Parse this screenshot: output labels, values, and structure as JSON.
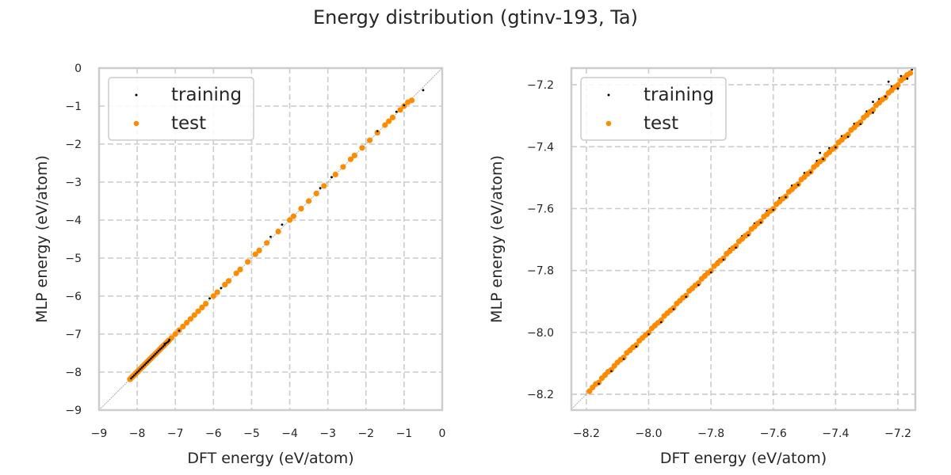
{
  "title": "Energy distribution (gtinv-193, Ta)",
  "chart_data": {
    "type": "scatter",
    "title": "Energy distribution (gtinv-193, Ta)",
    "colors": {
      "training": "#000000",
      "test": "#ff8c00",
      "diagonal": "#999999",
      "grid": "#cccccc",
      "spine": "#cccccc"
    },
    "legend_placement": "top-left",
    "grid": true,
    "subplots": [
      {
        "xlabel": "DFT energy (eV/atom)",
        "ylabel": "MLP energy (eV/atom)",
        "xlim": [
          -9,
          0
        ],
        "ylim": [
          -9,
          0
        ],
        "xticks": [
          -9,
          -8,
          -7,
          -6,
          -5,
          -4,
          -3,
          -2,
          -1,
          0
        ],
        "yticks": [
          -9,
          -8,
          -7,
          -6,
          -5,
          -4,
          -3,
          -2,
          -1,
          0
        ],
        "tick_labels_x": [
          "−9",
          "−8",
          "−7",
          "−6",
          "−5",
          "−4",
          "−3",
          "−2",
          "−1",
          "0"
        ],
        "tick_labels_y": [
          "−9",
          "−8",
          "−7",
          "−6",
          "−5",
          "−4",
          "−3",
          "−2",
          "−1",
          "0"
        ]
      },
      {
        "xlabel": "DFT energy (eV/atom)",
        "ylabel": "MLP energy (eV/atom)",
        "xlim": [
          -8.248,
          -7.144
        ],
        "ylim": [
          -8.251,
          -7.146
        ],
        "xticks": [
          -8.2,
          -8.0,
          -7.8,
          -7.6,
          -7.4,
          -7.2
        ],
        "yticks": [
          -8.2,
          -8.0,
          -7.8,
          -7.6,
          -7.4,
          -7.2
        ],
        "tick_labels_x": [
          "−8.2",
          "−8.0",
          "−7.8",
          "−7.6",
          "−7.4",
          "−7.2"
        ],
        "tick_labels_y": [
          "−8.2",
          "−8.0",
          "−7.8",
          "−7.6",
          "−7.4",
          "−7.2"
        ]
      }
    ],
    "series": [
      {
        "name": "training",
        "points": [
          [
            -8.18,
            -8.175
          ],
          [
            -8.16,
            -8.166
          ],
          [
            -8.14,
            -8.132
          ],
          [
            -8.12,
            -8.125
          ],
          [
            -8.1,
            -8.094
          ],
          [
            -8.08,
            -8.086
          ],
          [
            -8.06,
            -8.052
          ],
          [
            -8.04,
            -8.046
          ],
          [
            -8.02,
            -8.014
          ],
          [
            -8.0,
            -8.006
          ],
          [
            -7.98,
            -7.972
          ],
          [
            -7.96,
            -7.967
          ],
          [
            -7.94,
            -7.934
          ],
          [
            -7.92,
            -7.925
          ],
          [
            -7.9,
            -7.893
          ],
          [
            -7.88,
            -7.885
          ],
          [
            -7.86,
            -7.852
          ],
          [
            -7.84,
            -7.847
          ],
          [
            -7.82,
            -7.812
          ],
          [
            -7.8,
            -7.806
          ],
          [
            -7.78,
            -7.771
          ],
          [
            -7.76,
            -7.765
          ],
          [
            -7.74,
            -7.73
          ],
          [
            -7.72,
            -7.726
          ],
          [
            -7.7,
            -7.689
          ],
          [
            -7.68,
            -7.686
          ],
          [
            -7.66,
            -7.648
          ],
          [
            -7.64,
            -7.645
          ],
          [
            -7.62,
            -7.607
          ],
          [
            -7.6,
            -7.604
          ],
          [
            -7.58,
            -7.566
          ],
          [
            -7.56,
            -7.563
          ],
          [
            -7.54,
            -7.526
          ],
          [
            -7.52,
            -7.523
          ],
          [
            -7.5,
            -7.485
          ],
          [
            -7.48,
            -7.483
          ],
          [
            -7.46,
            -7.446
          ],
          [
            -7.44,
            -7.44
          ],
          [
            -7.42,
            -7.405
          ],
          [
            -7.4,
            -7.402
          ],
          [
            -7.38,
            -7.366
          ],
          [
            -7.36,
            -7.368
          ],
          [
            -7.34,
            -7.326
          ],
          [
            -7.32,
            -7.327
          ],
          [
            -7.3,
            -7.286
          ],
          [
            -7.28,
            -7.29
          ],
          [
            -7.26,
            -7.246
          ],
          [
            -7.24,
            -7.238
          ],
          [
            -7.22,
            -7.205
          ],
          [
            -7.2,
            -7.212
          ],
          [
            -7.19,
            -7.172
          ],
          [
            -7.17,
            -7.18
          ],
          [
            -7.16,
            -7.163
          ],
          [
            -7.155,
            -7.15
          ],
          [
            -7.23,
            -7.19
          ],
          [
            -7.28,
            -7.255
          ],
          [
            -7.45,
            -7.42
          ],
          [
            -6.9,
            -6.91
          ],
          [
            -6.1,
            -6.06
          ],
          [
            -5.8,
            -5.79
          ],
          [
            -4.5,
            -4.44
          ],
          [
            -4.2,
            -4.12
          ],
          [
            -3.2,
            -3.16
          ],
          [
            -2.9,
            -2.87
          ],
          [
            -2.1,
            -2.06
          ],
          [
            -1.7,
            -1.66
          ],
          [
            -1.2,
            -1.15
          ],
          [
            -1.0,
            -0.98
          ],
          [
            -0.85,
            -0.88
          ],
          [
            -0.5,
            -0.58
          ]
        ]
      },
      {
        "name": "test",
        "points": [
          [
            -8.19,
            -8.19
          ],
          [
            -8.18,
            -8.178
          ],
          [
            -8.17,
            -8.167
          ],
          [
            -8.16,
            -8.162
          ],
          [
            -8.15,
            -8.148
          ],
          [
            -8.14,
            -8.138
          ],
          [
            -8.13,
            -8.127
          ],
          [
            -8.12,
            -8.121
          ],
          [
            -8.11,
            -8.108
          ],
          [
            -8.1,
            -8.097
          ],
          [
            -8.09,
            -8.088
          ],
          [
            -8.08,
            -8.081
          ],
          [
            -8.07,
            -8.066
          ],
          [
            -8.06,
            -8.058
          ],
          [
            -8.05,
            -8.048
          ],
          [
            -8.04,
            -8.041
          ],
          [
            -8.03,
            -8.027
          ],
          [
            -8.02,
            -8.018
          ],
          [
            -8.01,
            -8.009
          ],
          [
            -8.0,
            -8.001
          ],
          [
            -7.99,
            -7.987
          ],
          [
            -7.98,
            -7.978
          ],
          [
            -7.97,
            -7.969
          ],
          [
            -7.96,
            -7.961
          ],
          [
            -7.95,
            -7.947
          ],
          [
            -7.94,
            -7.938
          ],
          [
            -7.93,
            -7.929
          ],
          [
            -7.92,
            -7.921
          ],
          [
            -7.91,
            -7.907
          ],
          [
            -7.9,
            -7.898
          ],
          [
            -7.89,
            -7.888
          ],
          [
            -7.88,
            -7.881
          ],
          [
            -7.87,
            -7.866
          ],
          [
            -7.86,
            -7.858
          ],
          [
            -7.85,
            -7.848
          ],
          [
            -7.84,
            -7.841
          ],
          [
            -7.83,
            -7.827
          ],
          [
            -7.82,
            -7.818
          ],
          [
            -7.81,
            -7.808
          ],
          [
            -7.8,
            -7.801
          ],
          [
            -7.79,
            -7.786
          ],
          [
            -7.78,
            -7.778
          ],
          [
            -7.77,
            -7.768
          ],
          [
            -7.76,
            -7.761
          ],
          [
            -7.75,
            -7.746
          ],
          [
            -7.74,
            -7.738
          ],
          [
            -7.73,
            -7.728
          ],
          [
            -7.72,
            -7.721
          ],
          [
            -7.71,
            -7.706
          ],
          [
            -7.7,
            -7.698
          ],
          [
            -7.69,
            -7.688
          ],
          [
            -7.68,
            -7.681
          ],
          [
            -7.67,
            -7.666
          ],
          [
            -7.66,
            -7.658
          ],
          [
            -7.65,
            -7.648
          ],
          [
            -7.64,
            -7.641
          ],
          [
            -7.63,
            -7.626
          ],
          [
            -7.62,
            -7.618
          ],
          [
            -7.61,
            -7.608
          ],
          [
            -7.6,
            -7.601
          ],
          [
            -7.59,
            -7.586
          ],
          [
            -7.58,
            -7.578
          ],
          [
            -7.57,
            -7.568
          ],
          [
            -7.56,
            -7.561
          ],
          [
            -7.55,
            -7.546
          ],
          [
            -7.54,
            -7.538
          ],
          [
            -7.53,
            -7.528
          ],
          [
            -7.52,
            -7.521
          ],
          [
            -7.51,
            -7.506
          ],
          [
            -7.5,
            -7.498
          ],
          [
            -7.49,
            -7.488
          ],
          [
            -7.48,
            -7.481
          ],
          [
            -7.47,
            -7.466
          ],
          [
            -7.46,
            -7.458
          ],
          [
            -7.45,
            -7.448
          ],
          [
            -7.44,
            -7.441
          ],
          [
            -7.43,
            -7.426
          ],
          [
            -7.42,
            -7.418
          ],
          [
            -7.41,
            -7.408
          ],
          [
            -7.4,
            -7.401
          ],
          [
            -7.39,
            -7.386
          ],
          [
            -7.38,
            -7.378
          ],
          [
            -7.37,
            -7.368
          ],
          [
            -7.36,
            -7.361
          ],
          [
            -7.35,
            -7.346
          ],
          [
            -7.34,
            -7.338
          ],
          [
            -7.33,
            -7.328
          ],
          [
            -7.32,
            -7.321
          ],
          [
            -7.31,
            -7.306
          ],
          [
            -7.3,
            -7.298
          ],
          [
            -7.29,
            -7.288
          ],
          [
            -7.28,
            -7.281
          ],
          [
            -7.27,
            -7.266
          ],
          [
            -7.26,
            -7.258
          ],
          [
            -7.25,
            -7.248
          ],
          [
            -7.24,
            -7.241
          ],
          [
            -7.23,
            -7.226
          ],
          [
            -7.22,
            -7.218
          ],
          [
            -7.21,
            -7.208
          ],
          [
            -7.2,
            -7.201
          ],
          [
            -7.19,
            -7.186
          ],
          [
            -7.18,
            -7.178
          ],
          [
            -7.17,
            -7.168
          ],
          [
            -7.16,
            -7.162
          ],
          [
            -7.1,
            -7.1
          ],
          [
            -7.0,
            -7.0
          ],
          [
            -6.9,
            -6.9
          ],
          [
            -6.8,
            -6.8
          ],
          [
            -6.7,
            -6.7
          ],
          [
            -6.6,
            -6.6
          ],
          [
            -6.5,
            -6.5
          ],
          [
            -6.4,
            -6.4
          ],
          [
            -6.3,
            -6.3
          ],
          [
            -6.2,
            -6.2
          ],
          [
            -6.0,
            -6.0
          ],
          [
            -5.9,
            -5.9
          ],
          [
            -5.7,
            -5.7
          ],
          [
            -5.6,
            -5.6
          ],
          [
            -5.4,
            -5.4
          ],
          [
            -5.3,
            -5.3
          ],
          [
            -5.1,
            -5.1
          ],
          [
            -4.9,
            -4.9
          ],
          [
            -4.8,
            -4.8
          ],
          [
            -4.6,
            -4.6
          ],
          [
            -4.3,
            -4.3
          ],
          [
            -4.0,
            -4.0
          ],
          [
            -3.9,
            -3.9
          ],
          [
            -3.7,
            -3.7
          ],
          [
            -3.5,
            -3.5
          ],
          [
            -3.3,
            -3.3
          ],
          [
            -3.1,
            -3.1
          ],
          [
            -2.8,
            -2.8
          ],
          [
            -2.6,
            -2.6
          ],
          [
            -2.4,
            -2.4
          ],
          [
            -2.3,
            -2.3
          ],
          [
            -2.1,
            -2.1
          ],
          [
            -1.9,
            -1.9
          ],
          [
            -1.7,
            -1.7
          ],
          [
            -1.5,
            -1.5
          ],
          [
            -1.4,
            -1.4
          ],
          [
            -1.3,
            -1.3
          ],
          [
            -1.1,
            -1.1
          ],
          [
            -1.0,
            -1.0
          ],
          [
            -0.9,
            -0.9
          ],
          [
            -0.8,
            -0.85
          ]
        ]
      }
    ]
  }
}
